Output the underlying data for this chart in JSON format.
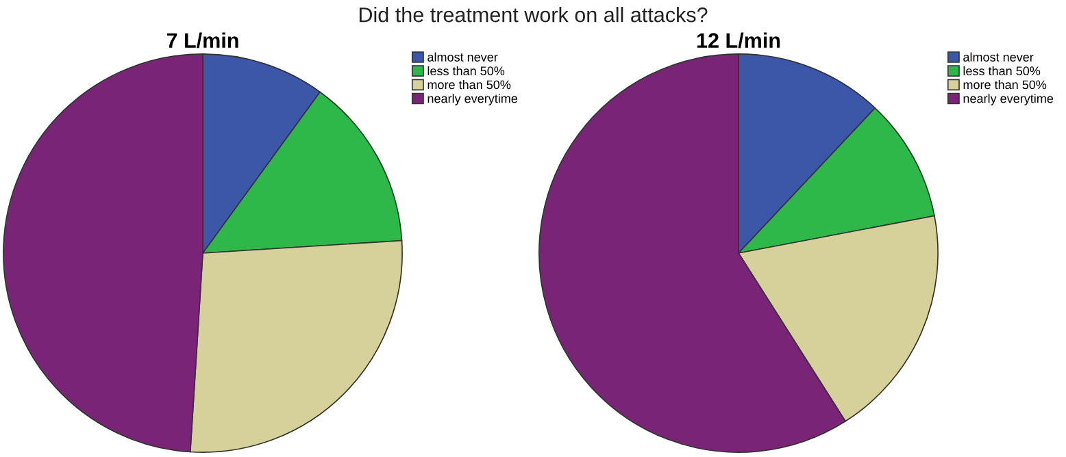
{
  "chart_data": [
    {
      "type": "pie",
      "title": "7 L/min",
      "annotations": [
        "Did the treatment work on all attacks?"
      ],
      "categories": [
        "almost never",
        "less than 50%",
        "more than 50%",
        "nearly everytime"
      ],
      "values": [
        10,
        14,
        27,
        49
      ],
      "colors": [
        "#3c56a8",
        "#2eb84a",
        "#d6d09a",
        "#7a2478"
      ],
      "legend": "top right"
    },
    {
      "type": "pie",
      "title": "12 L/min",
      "categories": [
        "almost never",
        "less than 50%",
        "more than 50%",
        "nearly everytime"
      ],
      "values": [
        12,
        10,
        19,
        59
      ],
      "colors": [
        "#3c56a8",
        "#2eb84a",
        "#d6d09a",
        "#7a2478"
      ],
      "legend": "top right"
    }
  ]
}
